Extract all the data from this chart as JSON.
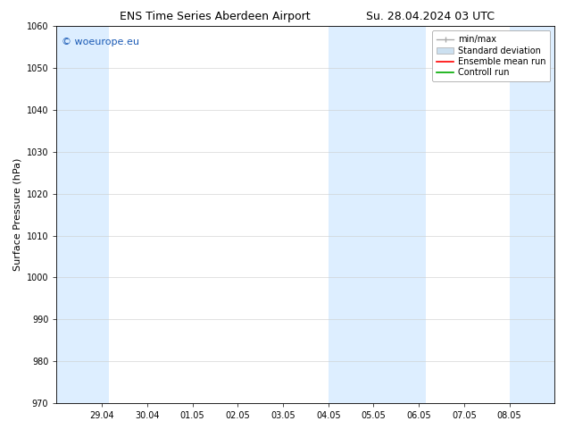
{
  "title_left": "ENS Time Series Aberdeen Airport",
  "title_right": "Su. 28.04.2024 03 UTC",
  "ylabel": "Surface Pressure (hPa)",
  "ylim": [
    970,
    1060
  ],
  "yticks": [
    970,
    980,
    990,
    1000,
    1010,
    1020,
    1030,
    1040,
    1050,
    1060
  ],
  "xtick_labels": [
    "29.04",
    "30.04",
    "01.05",
    "02.05",
    "03.05",
    "04.05",
    "05.05",
    "06.05",
    "07.05",
    "08.05"
  ],
  "band_color": "#ddeeff",
  "bg_color": "#ffffff",
  "watermark": "© woeurope.eu",
  "watermark_color": "#1a5ab5",
  "title_fontsize": 9,
  "tick_fontsize": 7,
  "ylabel_fontsize": 8,
  "watermark_fontsize": 8,
  "legend_fontsize": 7,
  "grid_color": "#cccccc",
  "spine_color": "#000000",
  "minmax_color": "#aaaaaa",
  "std_color": "#cce0f0",
  "ensemble_color": "#ff0000",
  "control_color": "#00aa00"
}
